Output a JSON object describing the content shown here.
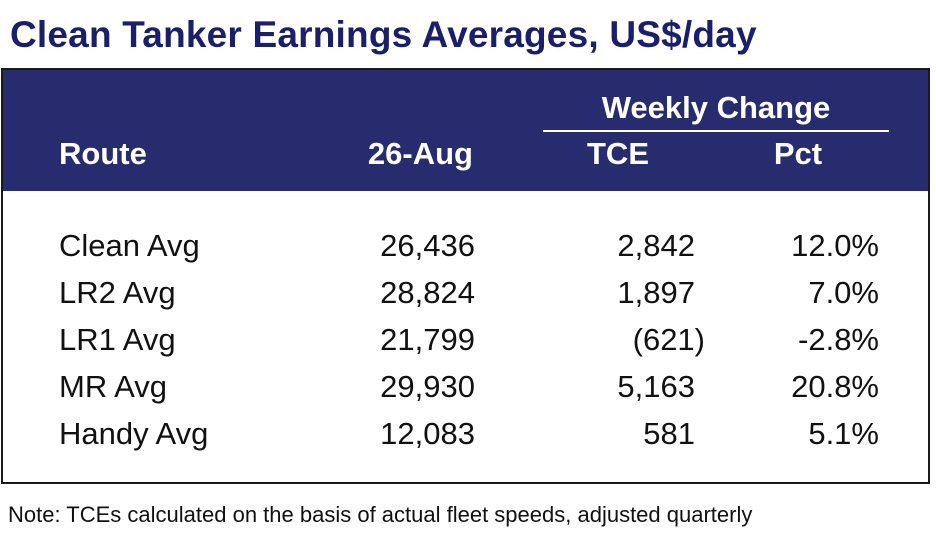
{
  "title": "Clean Tanker Earnings Averages, US$/day",
  "header": {
    "group_label": "Weekly Change",
    "columns": [
      "Route",
      "26-Aug",
      "TCE",
      "Pct"
    ]
  },
  "rows": [
    {
      "route": "Clean Avg",
      "value": "26,436",
      "tce": "2,842",
      "pct": "12.0%"
    },
    {
      "route": "LR2 Avg",
      "value": "28,824",
      "tce": "1,897",
      "pct": "7.0%"
    },
    {
      "route": "LR1 Avg",
      "value": "21,799",
      "tce": "(621)",
      "pct": "-2.8%"
    },
    {
      "route": "MR Avg",
      "value": "29,930",
      "tce": "5,163",
      "pct": "20.8%"
    },
    {
      "route": "Handy Avg",
      "value": "12,083",
      "tce": "581",
      "pct": "5.1%"
    }
  ],
  "note": "Note: TCEs calculated on the basis of actual fleet speeds, adjusted quarterly",
  "colors": {
    "title": "#1b1f6b",
    "header_bg": "#262c6e",
    "header_text": "#ffffff"
  }
}
